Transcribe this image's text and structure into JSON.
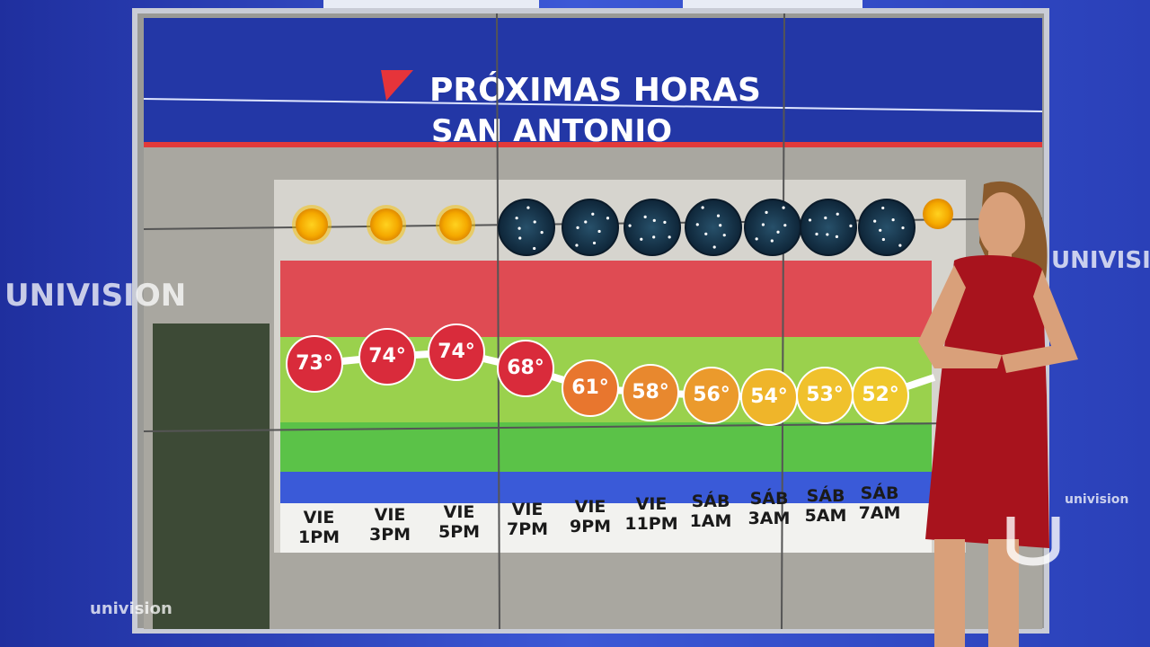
{
  "header": {
    "title": "PRÓXIMAS HORAS",
    "subtitle": "SAN ANTONIO"
  },
  "forecast": [
    {
      "day": "VIE",
      "time": "1PM",
      "temperature": "73°",
      "sky": "sunny"
    },
    {
      "day": "VIE",
      "time": "3PM",
      "temperature": "74°",
      "sky": "sunny"
    },
    {
      "day": "VIE",
      "time": "5PM",
      "temperature": "74°",
      "sky": "sunny"
    },
    {
      "day": "VIE",
      "time": "7PM",
      "temperature": "68°",
      "sky": "clear-night"
    },
    {
      "day": "VIE",
      "time": "9PM",
      "temperature": "61°",
      "sky": "clear-night"
    },
    {
      "day": "VIE",
      "time": "11PM",
      "temperature": "58°",
      "sky": "clear-night"
    },
    {
      "day": "SÁB",
      "time": "1AM",
      "temperature": "56°",
      "sky": "clear-night"
    },
    {
      "day": "SÁB",
      "time": "3AM",
      "temperature": "54°",
      "sky": "clear-night"
    },
    {
      "day": "SÁB",
      "time": "5AM",
      "temperature": "53°",
      "sky": "clear-night"
    },
    {
      "day": "SÁB",
      "time": "7AM",
      "temperature": "52°",
      "sky": "clear-night"
    }
  ],
  "branding": [
    "UNIVISION",
    "univision",
    "univision",
    "UNIVISION"
  ]
}
